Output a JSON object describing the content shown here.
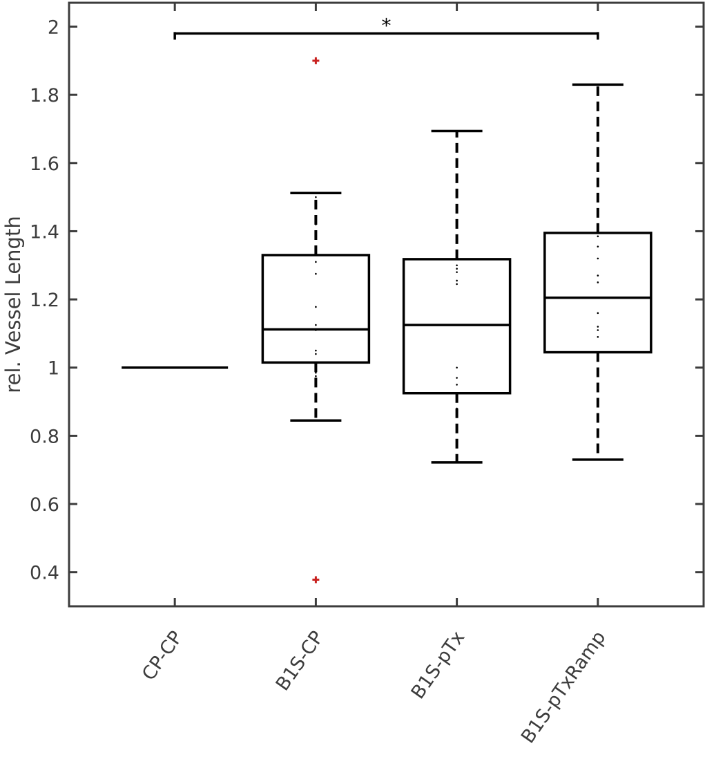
{
  "colors": {
    "box": "#000000",
    "axis": "#3c3c3c",
    "outlier": "#c8201e",
    "points": "#000000"
  },
  "chart_data": {
    "type": "box",
    "title": "",
    "xlabel": "",
    "ylabel": "rel. Vessel Length",
    "ylim": [
      0.3,
      2.07
    ],
    "yticks": [
      0.4,
      0.6,
      0.8,
      1,
      1.2,
      1.4,
      1.6,
      1.8,
      2
    ],
    "ytick_labels": [
      "0.4",
      "0.6",
      "0.8",
      "1",
      "1.2",
      "1.4",
      "1.6",
      "1.8",
      "2"
    ],
    "grid": false,
    "categories": [
      "CP-CP",
      "B1S-CP",
      "B1S-pTx",
      "B1S-pTxRamp"
    ],
    "boxes": [
      {
        "name": "CP-CP",
        "whisker_low": 1.0,
        "q1": 1.0,
        "median": 1.0,
        "q3": 1.0,
        "whisker_high": 1.0,
        "outliers": [],
        "points": []
      },
      {
        "name": "B1S-CP",
        "whisker_low": 0.845,
        "q1": 1.015,
        "median": 1.112,
        "q3": 1.33,
        "whisker_high": 1.512,
        "outliers": [
          1.9,
          0.378
        ],
        "points": [
          1.5,
          1.42,
          1.4,
          1.31,
          1.275,
          1.178,
          1.125,
          1.11,
          1.05,
          1.04,
          0.985,
          0.975
        ]
      },
      {
        "name": "B1S-pTx",
        "whisker_low": 0.722,
        "q1": 0.925,
        "median": 1.125,
        "q3": 1.318,
        "whisker_high": 1.694,
        "outliers": [],
        "points": [
          1.3,
          1.29,
          1.28,
          1.255,
          1.245,
          1.0,
          0.97,
          0.95,
          0.9,
          0.88,
          0.87
        ]
      },
      {
        "name": "B1S-pTxRamp",
        "whisker_low": 0.73,
        "q1": 1.045,
        "median": 1.205,
        "q3": 1.395,
        "whisker_high": 1.83,
        "outliers": [],
        "points": [
          1.73,
          1.71,
          1.385,
          1.355,
          1.32,
          1.27,
          1.25,
          1.16,
          1.12,
          1.11,
          1.09,
          0.985,
          0.975
        ]
      }
    ],
    "annotations": [
      {
        "text": "*",
        "from": "CP-CP",
        "to": "B1S-pTxRamp",
        "y": 1.98
      }
    ]
  }
}
